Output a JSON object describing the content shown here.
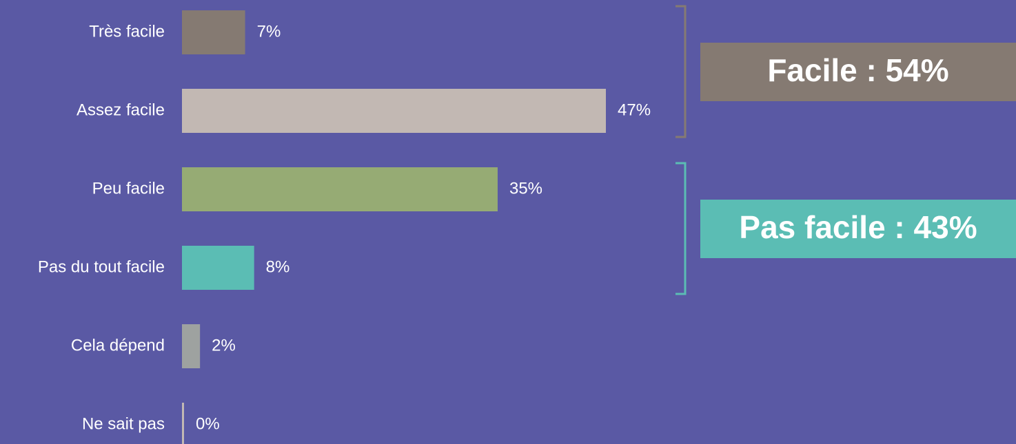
{
  "chart_data": {
    "type": "hbar",
    "categories": [
      "Très facile",
      "Assez facile",
      "Peu facile",
      "Pas du tout facile",
      "Cela dépend",
      "Ne sait pas"
    ],
    "values": [
      7,
      47,
      35,
      8,
      2,
      0
    ],
    "value_labels": [
      "7%",
      "47%",
      "35%",
      "8%",
      "2%",
      "0%"
    ],
    "colors": [
      "#857a72",
      "#c2b8b3",
      "#96ab74",
      "#5bbdb4",
      "#9ea2a0",
      "#c2b8b3"
    ],
    "annotations": [
      {
        "text": "Facile : 54%",
        "color": "#857a72"
      },
      {
        "text": "Pas facile : 43%",
        "color": "#5bbdb4"
      }
    ]
  }
}
